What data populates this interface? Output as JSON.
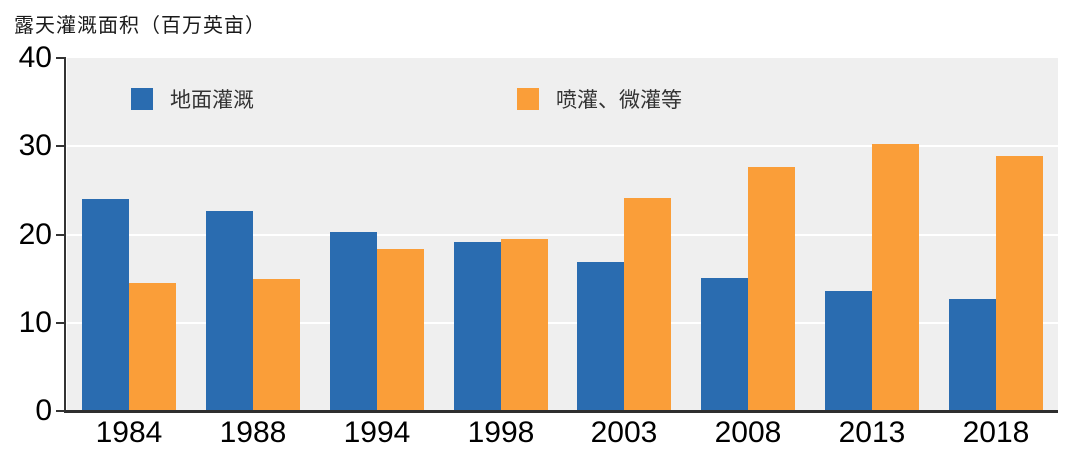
{
  "page": {
    "background": "#ffffff"
  },
  "chart_data": {
    "type": "bar",
    "title": "露天灌溉面积（百万英亩）",
    "categories": [
      "1984",
      "1988",
      "1994",
      "1998",
      "2003",
      "2008",
      "2013",
      "2018"
    ],
    "series": [
      {
        "key": "surface",
        "name": "地面灌溉",
        "color": "#2a6cb0",
        "values": [
          24.0,
          22.7,
          20.3,
          19.1,
          16.9,
          15.1,
          13.6,
          12.7
        ]
      },
      {
        "key": "sprinkler",
        "name": "喷灌、微灌等",
        "color": "#fa9e39",
        "values": [
          14.5,
          15.0,
          18.4,
          19.5,
          24.1,
          27.6,
          30.3,
          28.9
        ]
      }
    ],
    "xlabel": "",
    "ylabel": "露天灌溉面积（百万英亩）",
    "ylim": [
      0,
      40
    ],
    "yticks": [
      0,
      10,
      20,
      30,
      40
    ],
    "grid": true,
    "plot_background": "#efefef",
    "gridline_color": "#ffffff",
    "axis_color": "#333333",
    "legend_position": "top-inside"
  }
}
